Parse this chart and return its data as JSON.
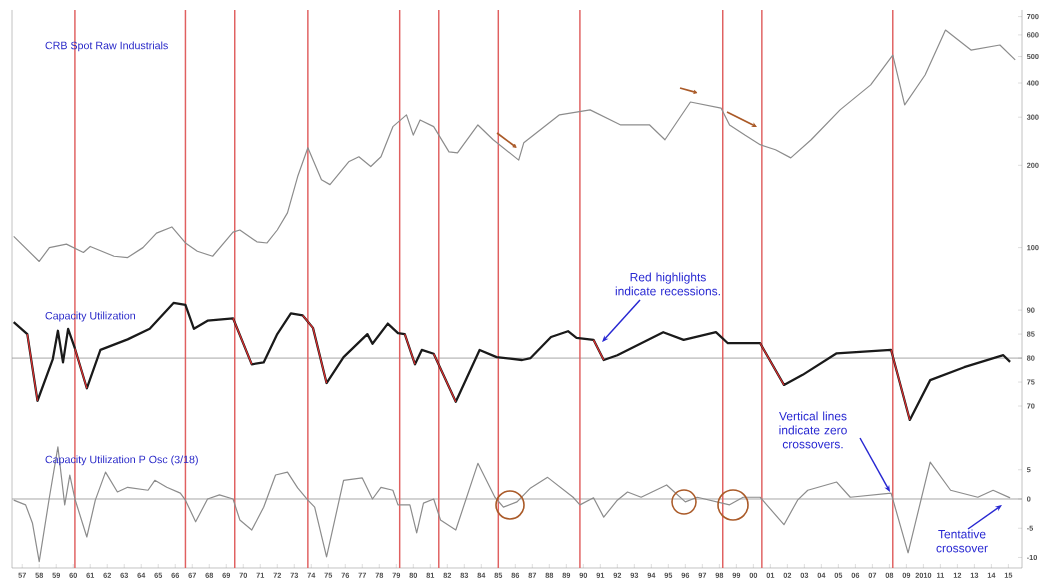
{
  "chart_data": [
    {
      "type": "line",
      "xlim": [
        1956.4,
        2015.8
      ],
      "ylim": [
        70,
        740
      ],
      "log": true,
      "yticks": [
        100,
        200,
        300,
        400,
        500,
        600,
        700
      ],
      "tick_labels": "y",
      "series": [
        {
          "name": "CRB Spot Raw Industrials",
          "color": "#8c8c8c",
          "x": [
            1956.5,
            1958.0,
            1958.6,
            1959.6,
            1960.6,
            1961.0,
            1962.4,
            1963.2,
            1964.1,
            1964.9,
            1965.8,
            1966.6,
            1967.3,
            1968.2,
            1969.4,
            1969.8,
            1970.8,
            1971.4,
            1972.0,
            1972.6,
            1973.2,
            1973.8,
            1974.6,
            1975.1,
            1976.2,
            1976.8,
            1977.5,
            1978.1,
            1978.8,
            1979.6,
            1980.0,
            1980.4,
            1981.2,
            1982.1,
            1982.6,
            1983.8,
            1984.7,
            1986.2,
            1986.5,
            1988.6,
            1990.4,
            1992.2,
            1993.9,
            1994.8,
            1996.3,
            1998.1,
            1998.6,
            1999.5,
            2000.4,
            2001.3,
            2002.2,
            2003.4,
            2005.1,
            2006.9,
            2008.2,
            2008.9,
            2010.1,
            2011.3,
            2012.8,
            2014.5,
            2015.4
          ],
          "values": [
            110,
            89,
            100,
            103,
            96,
            101,
            93,
            92,
            100,
            113,
            119,
            104,
            97,
            93,
            114,
            116,
            105,
            104,
            116,
            134,
            182,
            232,
            177,
            170,
            206,
            215,
            198,
            215,
            277,
            306,
            258,
            293,
            277,
            224,
            222,
            281,
            248,
            209,
            242,
            306,
            319,
            281,
            281,
            248,
            341,
            324,
            281,
            258,
            238,
            228,
            213,
            248,
            319,
            394,
            506,
            333,
            428,
            625,
            528,
            551,
            486
          ]
        }
      ],
      "ref_lines": [
        {
          "axis": "x",
          "value": 1960.1,
          "color": "#e06060"
        },
        {
          "axis": "x",
          "value": 1966.6,
          "color": "#e06060"
        },
        {
          "axis": "x",
          "value": 1969.5,
          "color": "#e06060"
        },
        {
          "axis": "x",
          "value": 1973.8,
          "color": "#e06060"
        },
        {
          "axis": "x",
          "value": 1979.2,
          "color": "#e06060"
        },
        {
          "axis": "x",
          "value": 1981.5,
          "color": "#e06060"
        },
        {
          "axis": "x",
          "value": 1985.0,
          "color": "#e06060"
        },
        {
          "axis": "x",
          "value": 1989.8,
          "color": "#e06060"
        },
        {
          "axis": "x",
          "value": 1998.2,
          "color": "#e06060"
        },
        {
          "axis": "x",
          "value": 2000.5,
          "color": "#e06060"
        },
        {
          "axis": "x",
          "value": 2008.2,
          "color": "#e06060"
        }
      ]
    },
    {
      "type": "line",
      "xlim": [
        1956.4,
        2015.8
      ],
      "ylim": [
        65,
        94.2
      ],
      "yticks": [
        70,
        75,
        80,
        85,
        90
      ],
      "tick_labels": "y",
      "series": [
        {
          "name": "Capacity Utilization",
          "color": "#1a1a1a",
          "x": [
            1956.5,
            1957.3,
            1957.9,
            1958.8,
            1959.1,
            1959.4,
            1959.7,
            1960.1,
            1960.8,
            1961.6,
            1963.2,
            1964.5,
            1965.9,
            1966.6,
            1967.1,
            1967.9,
            1969.4,
            1970.5,
            1971.2,
            1972.0,
            1972.8,
            1973.5,
            1974.1,
            1974.9,
            1975.9,
            1977.3,
            1977.6,
            1978.5,
            1979.1,
            1979.5,
            1980.1,
            1980.5,
            1981.2,
            1982.5,
            1983.9,
            1984.9,
            1986.4,
            1986.9,
            1988.1,
            1989.1,
            1989.6,
            1990.6,
            1991.2,
            1992.0,
            1994.7,
            1995.9,
            1997.8,
            1998.5,
            2000.4,
            2001.8,
            2002.9,
            2004.9,
            2008.1,
            2009.2,
            2010.4,
            2012.4,
            2014.7,
            2015.1
          ],
          "values": [
            87.5,
            85.0,
            71.1,
            79.8,
            85.7,
            79.1,
            86.1,
            82.0,
            73.7,
            81.7,
            83.9,
            86.1,
            91.5,
            91.1,
            86.1,
            87.8,
            88.3,
            78.7,
            79.1,
            85.0,
            89.3,
            88.9,
            86.3,
            74.8,
            80.2,
            85.0,
            83.0,
            87.2,
            85.2,
            85.0,
            78.7,
            81.7,
            80.9,
            70.9,
            81.7,
            80.2,
            79.6,
            80,
            84.4,
            85.6,
            84.2,
            83.8,
            79.6,
            80.6,
            85.4,
            83.8,
            85.4,
            83.1,
            83.1,
            74.4,
            76.5,
            81,
            81.7,
            67.1,
            75.4,
            78.1,
            80.6,
            79.2
          ]
        },
        {
          "color": "#e03030",
          "x": [
            1957.3,
            1957.9
          ],
          "values": [
            85.0,
            71.1
          ]
        },
        {
          "color": "#e03030",
          "x": [
            1960.1,
            1960.8
          ],
          "values": [
            82.0,
            73.7
          ]
        },
        {
          "color": "#e03030",
          "x": [
            1969.4,
            1970.5
          ],
          "values": [
            88.3,
            78.7
          ]
        },
        {
          "color": "#e03030",
          "x": [
            1973.5,
            1974.1,
            1974.9
          ],
          "values": [
            88.9,
            86.3,
            74.8
          ]
        },
        {
          "color": "#e03030",
          "x": [
            1979.5,
            1980.1
          ],
          "values": [
            85.0,
            78.7
          ]
        },
        {
          "color": "#e03030",
          "x": [
            1981.2,
            1982.5
          ],
          "values": [
            80.9,
            70.9
          ]
        },
        {
          "color": "#e03030",
          "x": [
            1990.6,
            1991.2
          ],
          "values": [
            83.8,
            79.6
          ]
        },
        {
          "color": "#e03030",
          "x": [
            2000.4,
            2001.8
          ],
          "values": [
            83.1,
            74.4
          ]
        },
        {
          "color": "#e03030",
          "x": [
            2008.1,
            2009.2
          ],
          "values": [
            81.7,
            67.1
          ]
        }
      ],
      "annotations": [
        "Red highlights indicate recessions."
      ],
      "ref_lines": [
        {
          "axis": "y",
          "value": 80,
          "color": "#909090"
        },
        {
          "axis": "x",
          "value": 1960.1,
          "color": "#e06060"
        },
        {
          "axis": "x",
          "value": 1966.6,
          "color": "#e06060"
        },
        {
          "axis": "x",
          "value": 1969.5,
          "color": "#e06060"
        },
        {
          "axis": "x",
          "value": 1973.8,
          "color": "#e06060"
        },
        {
          "axis": "x",
          "value": 1979.2,
          "color": "#e06060"
        },
        {
          "axis": "x",
          "value": 1981.5,
          "color": "#e06060"
        },
        {
          "axis": "x",
          "value": 1985.0,
          "color": "#e06060"
        },
        {
          "axis": "x",
          "value": 1989.8,
          "color": "#e06060"
        },
        {
          "axis": "x",
          "value": 1998.2,
          "color": "#e06060"
        },
        {
          "axis": "x",
          "value": 2000.5,
          "color": "#e06060"
        },
        {
          "axis": "x",
          "value": 2008.2,
          "color": "#e06060"
        }
      ]
    },
    {
      "type": "line",
      "xlim": [
        1956.4,
        2015.8
      ],
      "ylim": [
        -11.8,
        11.8
      ],
      "yticks": [
        -10,
        -5,
        0,
        5
      ],
      "xticks": [
        {
          "value": 1957,
          "label": "57"
        },
        {
          "value": 1958,
          "label": "58"
        },
        {
          "value": 1959,
          "label": "59"
        },
        {
          "value": 1960,
          "label": "60"
        },
        {
          "value": 1961,
          "label": "61"
        },
        {
          "value": 1962,
          "label": "62"
        },
        {
          "value": 1963,
          "label": "63"
        },
        {
          "value": 1964,
          "label": "64"
        },
        {
          "value": 1965,
          "label": "65"
        },
        {
          "value": 1966,
          "label": "66"
        },
        {
          "value": 1967,
          "label": "67"
        },
        {
          "value": 1968,
          "label": "68"
        },
        {
          "value": 1969,
          "label": "69"
        },
        {
          "value": 1970,
          "label": "70"
        },
        {
          "value": 1971,
          "label": "71"
        },
        {
          "value": 1972,
          "label": "72"
        },
        {
          "value": 1973,
          "label": "73"
        },
        {
          "value": 1974,
          "label": "74"
        },
        {
          "value": 1975,
          "label": "75"
        },
        {
          "value": 1976,
          "label": "76"
        },
        {
          "value": 1977,
          "label": "77"
        },
        {
          "value": 1978,
          "label": "78"
        },
        {
          "value": 1979,
          "label": "79"
        },
        {
          "value": 1980,
          "label": "80"
        },
        {
          "value": 1981,
          "label": "81"
        },
        {
          "value": 1982,
          "label": "82"
        },
        {
          "value": 1983,
          "label": "83"
        },
        {
          "value": 1984,
          "label": "84"
        },
        {
          "value": 1985,
          "label": "85"
        },
        {
          "value": 1986,
          "label": "86"
        },
        {
          "value": 1987,
          "label": "87"
        },
        {
          "value": 1988,
          "label": "88"
        },
        {
          "value": 1989,
          "label": "89"
        },
        {
          "value": 1990,
          "label": "90"
        },
        {
          "value": 1991,
          "label": "91"
        },
        {
          "value": 1992,
          "label": "92"
        },
        {
          "value": 1993,
          "label": "93"
        },
        {
          "value": 1994,
          "label": "94"
        },
        {
          "value": 1995,
          "label": "95"
        },
        {
          "value": 1996,
          "label": "96"
        },
        {
          "value": 1997,
          "label": "97"
        },
        {
          "value": 1998,
          "label": "98"
        },
        {
          "value": 1999,
          "label": "99"
        },
        {
          "value": 2000,
          "label": "00"
        },
        {
          "value": 2001,
          "label": "01"
        },
        {
          "value": 2002,
          "label": "02"
        },
        {
          "value": 2003,
          "label": "03"
        },
        {
          "value": 2004,
          "label": "04"
        },
        {
          "value": 2005,
          "label": "05"
        },
        {
          "value": 2006,
          "label": "06"
        },
        {
          "value": 2007,
          "label": "07"
        },
        {
          "value": 2008,
          "label": "08"
        },
        {
          "value": 2009,
          "label": "09"
        },
        {
          "value": 2010,
          "label": "2010"
        },
        {
          "value": 2011,
          "label": "11"
        },
        {
          "value": 2012,
          "label": "12"
        },
        {
          "value": 2013,
          "label": "13"
        },
        {
          "value": 2014,
          "label": "14"
        },
        {
          "value": 2015,
          "label": "15"
        }
      ],
      "series": [
        {
          "name": "Capacity Utilization P Osc (3/18)",
          "color": "#8c8c8c",
          "x": [
            1956.5,
            1957.2,
            1957.6,
            1958.0,
            1958.6,
            1959.1,
            1959.5,
            1959.8,
            1960.1,
            1960.8,
            1961.3,
            1961.9,
            1962.6,
            1963.2,
            1964.4,
            1964.8,
            1965.5,
            1966.3,
            1966.6,
            1967.2,
            1967.9,
            1968.6,
            1969.4,
            1969.8,
            1970.5,
            1971.2,
            1971.9,
            1972.6,
            1973.2,
            1973.8,
            1974.2,
            1974.9,
            1975.9,
            1977.0,
            1977.6,
            1978.1,
            1978.8,
            1979.1,
            1979.8,
            1980.2,
            1980.6,
            1981.2,
            1981.6,
            1982.5,
            1983.8,
            1984.8,
            1985.3,
            1986.1,
            1986.9,
            1987.9,
            1989.4,
            1989.8,
            1990.6,
            1991.2,
            1992.0,
            1992.6,
            1993.4,
            1994.9,
            1996.0,
            1996.7,
            1998.6,
            1999.4,
            2000.4,
            2001.8,
            2002.6,
            2003.2,
            2004.9,
            2005.7,
            2008.1,
            2009.1,
            2010.4,
            2011.6,
            2013.2,
            2014.1,
            2015.1
          ],
          "values": [
            -0.2,
            -1.0,
            -4.1,
            -10.7,
            0.3,
            8.9,
            -1.0,
            4.1,
            0.0,
            -6.5,
            -0.2,
            4.6,
            1.2,
            2.0,
            1.5,
            3.2,
            2.0,
            1.0,
            -0.2,
            -3.9,
            0.0,
            0.7,
            0.0,
            -3.6,
            -5.3,
            -1.4,
            4.1,
            4.6,
            1.9,
            -0.2,
            -1.4,
            -9.9,
            3.2,
            3.6,
            0.0,
            2.0,
            1.5,
            -1.0,
            -1.0,
            -5.8,
            -0.7,
            0.0,
            -3.6,
            -5.3,
            6.1,
            0.3,
            -1.4,
            -0.5,
            1.9,
            3.7,
            0.3,
            -1.0,
            0.2,
            -3.1,
            -0.2,
            1.2,
            0.3,
            2.4,
            -0.5,
            0.3,
            -1.0,
            0.3,
            0.3,
            -4.4,
            -0.2,
            1.5,
            2.9,
            0.3,
            1.0,
            -9.2,
            6.3,
            1.5,
            0.3,
            1.5,
            0.2
          ]
        }
      ],
      "annotations": [
        "Vertical lines indicate zero crossovers.",
        "Tentative crossover"
      ],
      "ref_lines": [
        {
          "axis": "y",
          "value": 0,
          "color": "#909090"
        },
        {
          "axis": "x",
          "value": 1960.1,
          "color": "#e06060"
        },
        {
          "axis": "x",
          "value": 1966.6,
          "color": "#e06060"
        },
        {
          "axis": "x",
          "value": 1969.5,
          "color": "#e06060"
        },
        {
          "axis": "x",
          "value": 1973.8,
          "color": "#e06060"
        },
        {
          "axis": "x",
          "value": 1979.2,
          "color": "#e06060"
        },
        {
          "axis": "x",
          "value": 1981.5,
          "color": "#e06060"
        },
        {
          "axis": "x",
          "value": 1985.0,
          "color": "#e06060"
        },
        {
          "axis": "x",
          "value": 1989.8,
          "color": "#e06060"
        },
        {
          "axis": "x",
          "value": 1998.2,
          "color": "#e06060"
        },
        {
          "axis": "x",
          "value": 2000.5,
          "color": "#e06060"
        },
        {
          "axis": "x",
          "value": 2008.2,
          "color": "#e06060"
        }
      ]
    }
  ]
}
